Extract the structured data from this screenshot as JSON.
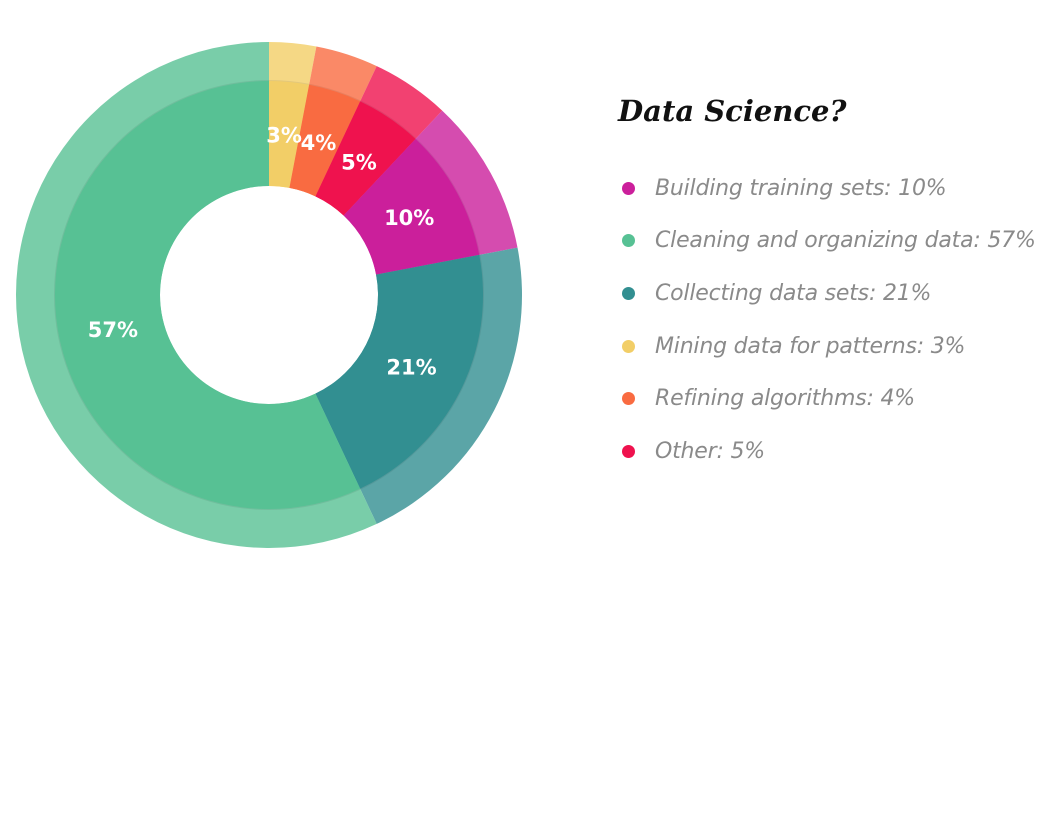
{
  "chart_data": {
    "type": "pie",
    "title": "Data Science?",
    "slices": [
      {
        "label": "Building training sets",
        "value": 10,
        "display": "10%",
        "color": "#CB1F9B"
      },
      {
        "label": "Cleaning and organizing data",
        "value": 57,
        "display": "57%",
        "color": "#57C194"
      },
      {
        "label": "Collecting data sets",
        "value": 21,
        "display": "21%",
        "color": "#328F91"
      },
      {
        "label": "Mining data for patterns",
        "value": 3,
        "display": "3%",
        "color": "#F2CE67"
      },
      {
        "label": "Refining algorithms",
        "value": 4,
        "display": "4%",
        "color": "#F96B41"
      },
      {
        "label": "Other",
        "value": 5,
        "display": "5%",
        "color": "#EF124E"
      }
    ],
    "draw_order": [
      3,
      4,
      5,
      0,
      2,
      1
    ],
    "legend_placement": "right",
    "legend_entries": [
      "Building training sets: 10%",
      "Cleaning and organizing data: 57%",
      "Collecting data sets: 21%",
      "Mining data for patterns: 3%",
      "Refining algorithms: 4%",
      "Other: 5%"
    ]
  }
}
